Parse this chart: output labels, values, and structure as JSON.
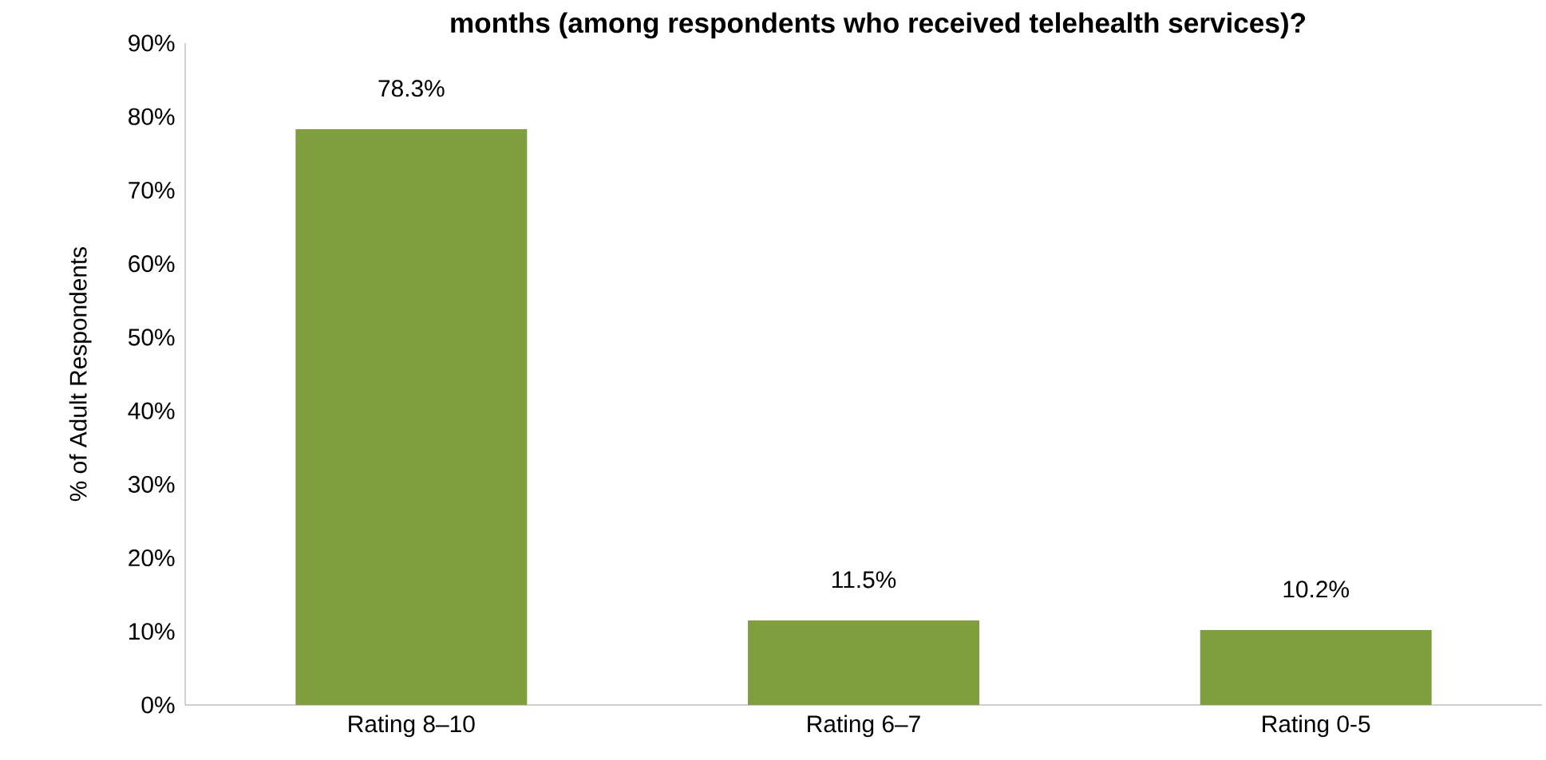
{
  "chart_data": {
    "type": "bar",
    "title": "months (among respondents who received telehealth services)?",
    "ylabel": "% of Adult Respondents",
    "categories": [
      "Rating 8–10",
      "Rating 6–7",
      "Rating 0-5"
    ],
    "values": [
      78.3,
      11.5,
      10.2
    ],
    "color": "#7f9f3f",
    "value_labels": [
      "78.3%",
      "11.5%",
      "10.2%"
    ],
    "ylim": [
      0,
      90
    ],
    "yticks": [
      {
        "value": 0,
        "label": "0%"
      },
      {
        "value": 10,
        "label": "10%"
      },
      {
        "value": 20,
        "label": "20%"
      },
      {
        "value": 30,
        "label": "30%"
      },
      {
        "value": 40,
        "label": "40%"
      },
      {
        "value": 50,
        "label": "50%"
      },
      {
        "value": 60,
        "label": "60%"
      },
      {
        "value": 70,
        "label": "70%"
      },
      {
        "value": 80,
        "label": "80%"
      },
      {
        "value": 90,
        "label": "90%"
      }
    ],
    "tick_labels": "xy"
  }
}
